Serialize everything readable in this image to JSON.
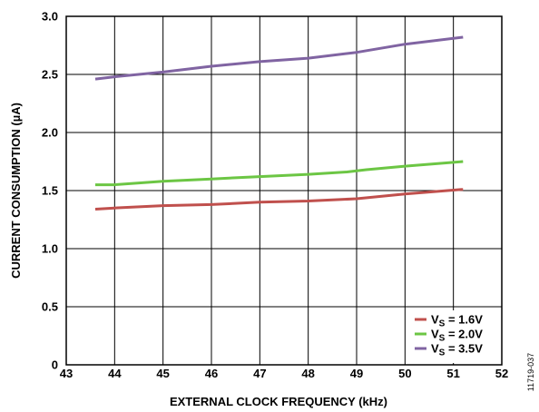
{
  "chart_data": {
    "type": "line",
    "figure_id": "11719-037",
    "xlabel": "EXTERNAL CLOCK FREQUENCY (kHz)",
    "ylabel": "CURRENT CONSUMPTION (µA)",
    "xlim": [
      43,
      52
    ],
    "ylim": [
      0,
      3.0
    ],
    "x_ticks": [
      "43",
      "44",
      "45",
      "46",
      "47",
      "48",
      "49",
      "50",
      "51",
      "52"
    ],
    "y_ticks": [
      "0",
      "0.5",
      "1.0",
      "1.5",
      "2.0",
      "2.5",
      "3.0"
    ],
    "grid": true,
    "legend_position": "bottom-right",
    "series": [
      {
        "name_main": "V",
        "name_sub": "S",
        "name_value": " = 1.6V",
        "color": "#c0504d",
        "x": [
          43.6,
          44.0,
          45.0,
          46.0,
          47.0,
          48.0,
          49.0,
          50.0,
          51.2
        ],
        "y": [
          1.34,
          1.35,
          1.37,
          1.38,
          1.4,
          1.41,
          1.43,
          1.47,
          1.51
        ]
      },
      {
        "name_main": "V",
        "name_sub": "S",
        "name_value": " = 2.0V",
        "color": "#6cc644",
        "x": [
          43.6,
          44.0,
          45.0,
          46.0,
          47.0,
          48.0,
          48.8,
          49.2,
          50.0,
          51.2
        ],
        "y": [
          1.55,
          1.55,
          1.58,
          1.6,
          1.62,
          1.64,
          1.66,
          1.68,
          1.71,
          1.75
        ]
      },
      {
        "name_main": "V",
        "name_sub": "S",
        "name_value": " = 3.5V",
        "color": "#8064a2",
        "x": [
          43.6,
          44.0,
          45.0,
          46.0,
          47.0,
          48.0,
          49.0,
          50.0,
          51.2
        ],
        "y": [
          2.46,
          2.48,
          2.52,
          2.57,
          2.61,
          2.64,
          2.69,
          2.76,
          2.82
        ]
      }
    ]
  }
}
